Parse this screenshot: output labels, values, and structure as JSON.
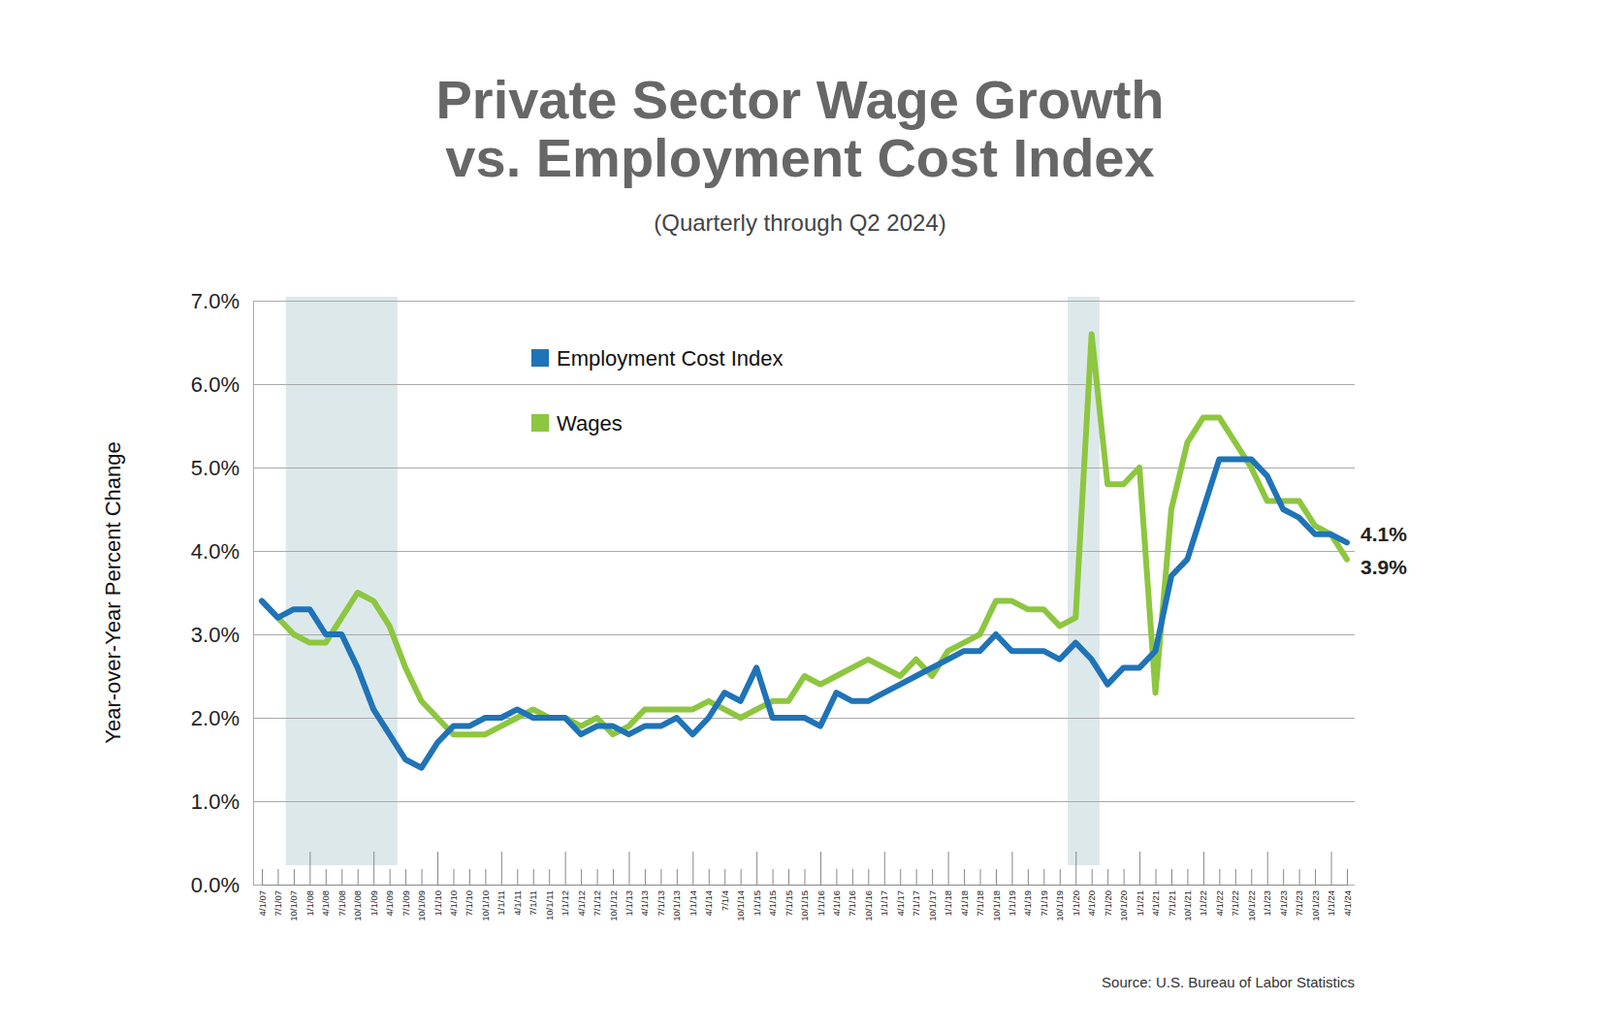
{
  "chart_data": {
    "type": "line",
    "title": [
      "Private Sector Wage Growth",
      "vs. Employment Cost Index"
    ],
    "subtitle": "(Quarterly through Q2 2024)",
    "y_label": "Year-over-Year Percent Change",
    "source": "Source: U.S. Bureau of Labor Statistics",
    "x": [
      "4/1/07",
      "7/1/07",
      "10/1/07",
      "1/1/08",
      "4/1/08",
      "7/1/08",
      "10/1/08",
      "1/1/09",
      "4/1/09",
      "7/1/09",
      "10/1/09",
      "1/1/10",
      "4/1/10",
      "7/1/10",
      "10/1/10",
      "1/1/11",
      "4/1/11",
      "7/1/11",
      "10/1/11",
      "1/1/12",
      "4/1/12",
      "7/1/12",
      "10/1/12",
      "1/1/13",
      "4/1/13",
      "7/1/13",
      "10/1/13",
      "1/1/14",
      "4/1/14",
      "7/1/4",
      "10/1/14",
      "1/1/15",
      "4/1/15",
      "7/1/15",
      "10/1/15",
      "1/1/16",
      "4/1/16",
      "7/1/16",
      "10/1/16",
      "1/1/17",
      "4/1/17",
      "7/1/17",
      "10/1/17",
      "1/1/18",
      "4/1/18",
      "7/1/18",
      "10/1/18",
      "1/1/19",
      "4/1/19",
      "7/1/19",
      "10/1/19",
      "1/1/20",
      "4/1/20",
      "7/1/20",
      "10/1/20",
      "1/1/21",
      "4/1/21",
      "7/1/21",
      "10/1/21",
      "1/1/22",
      "4/1/22",
      "7/1/22",
      "10/1/22",
      "1/1/23",
      "4/1/23",
      "7/1/23",
      "10/1/23",
      "1/1/24",
      "4/1/24"
    ],
    "series": [
      {
        "name": "Employment Cost Index",
        "color": "#1f73b7",
        "values": [
          3.4,
          3.2,
          3.3,
          3.3,
          3.0,
          3.0,
          2.6,
          2.1,
          1.8,
          1.5,
          1.4,
          1.7,
          1.9,
          1.9,
          2.0,
          2.0,
          2.1,
          2.0,
          2.0,
          2.0,
          1.8,
          1.9,
          1.9,
          1.8,
          1.9,
          1.9,
          2.0,
          1.8,
          2.0,
          2.3,
          2.2,
          2.6,
          2.0,
          2.0,
          2.0,
          1.9,
          2.3,
          2.2,
          2.2,
          2.3,
          2.4,
          2.5,
          2.6,
          2.7,
          2.8,
          2.8,
          3.0,
          2.8,
          2.8,
          2.8,
          2.7,
          2.9,
          2.7,
          2.4,
          2.6,
          2.6,
          2.8,
          3.7,
          3.9,
          4.5,
          5.1,
          5.1,
          5.1,
          4.9,
          4.5,
          4.4,
          4.2,
          4.2,
          4.1
        ]
      },
      {
        "name": "Wages",
        "color": "#8dc63f",
        "values": [
          3.4,
          3.2,
          3.0,
          2.9,
          2.9,
          3.2,
          3.5,
          3.4,
          3.1,
          2.6,
          2.2,
          2.0,
          1.8,
          1.8,
          1.8,
          1.9,
          2.0,
          2.1,
          2.0,
          2.0,
          1.9,
          2.0,
          1.8,
          1.9,
          2.1,
          2.1,
          2.1,
          2.1,
          2.2,
          2.1,
          2.0,
          2.1,
          2.2,
          2.2,
          2.5,
          2.4,
          2.5,
          2.6,
          2.7,
          2.6,
          2.5,
          2.7,
          2.5,
          2.8,
          2.9,
          3.0,
          3.4,
          3.4,
          3.3,
          3.3,
          3.1,
          3.2,
          6.6,
          4.8,
          4.8,
          5.0,
          2.3,
          4.5,
          5.3,
          5.6,
          5.6,
          5.3,
          5.0,
          4.6,
          4.6,
          4.6,
          4.3,
          4.2,
          3.9
        ]
      }
    ],
    "ylim": [
      0,
      7
    ],
    "yticks": [
      {
        "value": 0,
        "label": "0.0%"
      },
      {
        "value": 1,
        "label": "1.0%"
      },
      {
        "value": 2,
        "label": "2.0%"
      },
      {
        "value": 3,
        "label": "3.0%"
      },
      {
        "value": 4,
        "label": "4.0%"
      },
      {
        "value": 5,
        "label": "5.0%"
      },
      {
        "value": 6,
        "label": "6.0%"
      },
      {
        "value": 7,
        "label": "7.0%"
      }
    ],
    "grid": true,
    "legend": "upper center",
    "recessions": [
      {
        "start": "10/1/07",
        "end": "4/1/09"
      },
      {
        "start": "1/1/20",
        "end": "4/1/20"
      }
    ],
    "annotations": [
      {
        "x": "4/1/24",
        "y": 4.1,
        "text": "4.1%"
      },
      {
        "x": "4/1/24",
        "y": 3.9,
        "text": "3.9%"
      }
    ]
  }
}
